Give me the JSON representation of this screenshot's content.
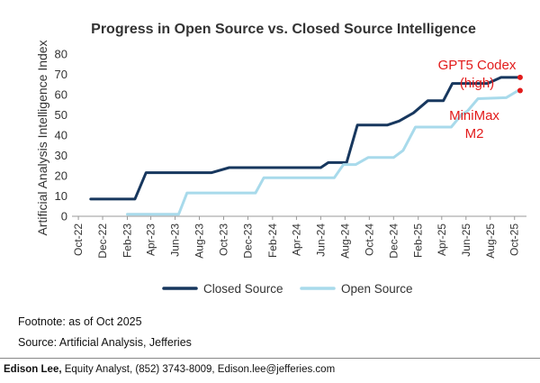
{
  "chart_data": {
    "type": "line",
    "title": "Progress in Open Source vs. Closed Source Intelligence",
    "xlabel": "",
    "ylabel": "Artificial Analysis Intelligence Index",
    "ylim": [
      0,
      80
    ],
    "yticks": [
      0,
      10,
      20,
      30,
      40,
      50,
      60,
      70,
      80
    ],
    "xlim": [
      "2022-09-15",
      "2025-10-31"
    ],
    "xticks": [
      "Oct-22",
      "Dec-22",
      "Feb-23",
      "Apr-23",
      "Jun-23",
      "Aug-23",
      "Oct-23",
      "Dec-23",
      "Feb-24",
      "Apr-24",
      "Jun-24",
      "Aug-24",
      "Oct-24",
      "Dec-24",
      "Feb-25",
      "Apr-25",
      "Jun-25",
      "Aug-25",
      "Oct-25"
    ],
    "tick_dates": [
      "2022-10-01",
      "2022-12-01",
      "2023-02-01",
      "2023-04-01",
      "2023-06-01",
      "2023-08-01",
      "2023-10-01",
      "2023-12-01",
      "2024-02-01",
      "2024-04-01",
      "2024-06-01",
      "2024-08-01",
      "2024-10-01",
      "2024-12-01",
      "2025-02-01",
      "2025-04-01",
      "2025-06-01",
      "2025-08-01",
      "2025-10-01"
    ],
    "grid": false,
    "legend_position": "bottom",
    "series": [
      {
        "name": "Closed Source",
        "color": "#17375e",
        "points": [
          [
            "2022-11-01",
            8.5
          ],
          [
            "2023-02-20",
            8.5
          ],
          [
            "2023-03-20",
            21.5
          ],
          [
            "2023-09-01",
            21.5
          ],
          [
            "2023-10-15",
            24
          ],
          [
            "2024-06-01",
            24
          ],
          [
            "2024-06-20",
            26.5
          ],
          [
            "2024-08-05",
            26.5
          ],
          [
            "2024-09-01",
            45
          ],
          [
            "2024-11-15",
            45
          ],
          [
            "2024-12-15",
            47
          ],
          [
            "2025-01-20",
            51
          ],
          [
            "2025-02-25",
            57
          ],
          [
            "2025-04-05",
            57
          ],
          [
            "2025-04-28",
            65.5
          ],
          [
            "2025-07-25",
            65.5
          ],
          [
            "2025-08-28",
            68.5
          ],
          [
            "2025-10-15",
            68.5
          ]
        ]
      },
      {
        "name": "Open Source",
        "color": "#a8daeb",
        "points": [
          [
            "2023-02-01",
            1
          ],
          [
            "2023-06-10",
            1
          ],
          [
            "2023-07-01",
            11.5
          ],
          [
            "2023-12-20",
            11.5
          ],
          [
            "2024-01-10",
            19
          ],
          [
            "2024-07-05",
            19
          ],
          [
            "2024-07-28",
            25.5
          ],
          [
            "2024-08-28",
            25.5
          ],
          [
            "2024-09-28",
            29
          ],
          [
            "2024-12-01",
            29
          ],
          [
            "2024-12-25",
            32.5
          ],
          [
            "2025-01-25",
            44
          ],
          [
            "2025-04-25",
            44
          ],
          [
            "2025-05-20",
            50
          ],
          [
            "2025-06-05",
            52
          ],
          [
            "2025-07-01",
            58
          ],
          [
            "2025-09-10",
            58.5
          ],
          [
            "2025-10-10",
            62
          ]
        ]
      }
    ],
    "annotations": [
      {
        "text_lines": [
          "GPT5 Codex",
          "(high)"
        ],
        "point": [
          "2025-10-15",
          68.5
        ],
        "color": "#e21b1b"
      },
      {
        "text_lines": [
          "MiniMax",
          "M2"
        ],
        "point": [
          "2025-10-15",
          62
        ],
        "color": "#e21b1b"
      }
    ]
  },
  "footnotes": {
    "footnote": "Footnote: as of Oct 2025",
    "source": "Source: Artificial Analysis, Jefferies"
  },
  "author": {
    "name": "Edison Lee,",
    "details": " Equity Analyst, (852) 3743-8009, Edison.lee@jefferies.com"
  }
}
